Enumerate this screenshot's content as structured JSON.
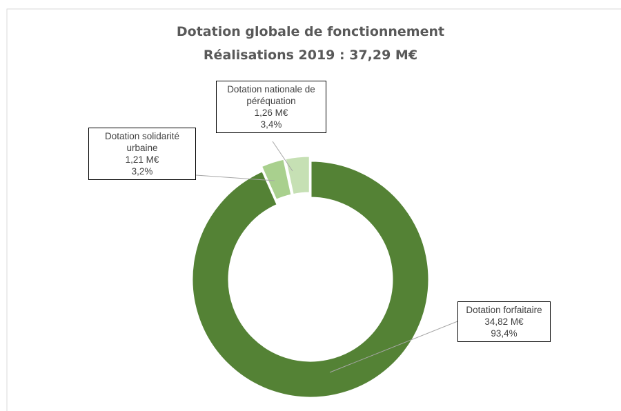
{
  "chart_data": {
    "type": "donut",
    "title": "Dotation globale de fonctionnement",
    "subtitle": "Réalisations 2019 : 37,29 M€",
    "categories": [
      "Dotation forfaitaire",
      "Dotation solidarité urbaine",
      "Dotation nationale de péréquation"
    ],
    "values": [
      34.82,
      1.21,
      1.26
    ],
    "value_labels": [
      "34,82 M€",
      "1,21 M€",
      "1,26 M€"
    ],
    "percents": [
      93.4,
      3.2,
      3.4
    ],
    "percent_labels": [
      "93,4%",
      "3,2%",
      "3,4%"
    ],
    "colors": [
      "#548235",
      "#a9d08e",
      "#c6e0b4"
    ]
  }
}
